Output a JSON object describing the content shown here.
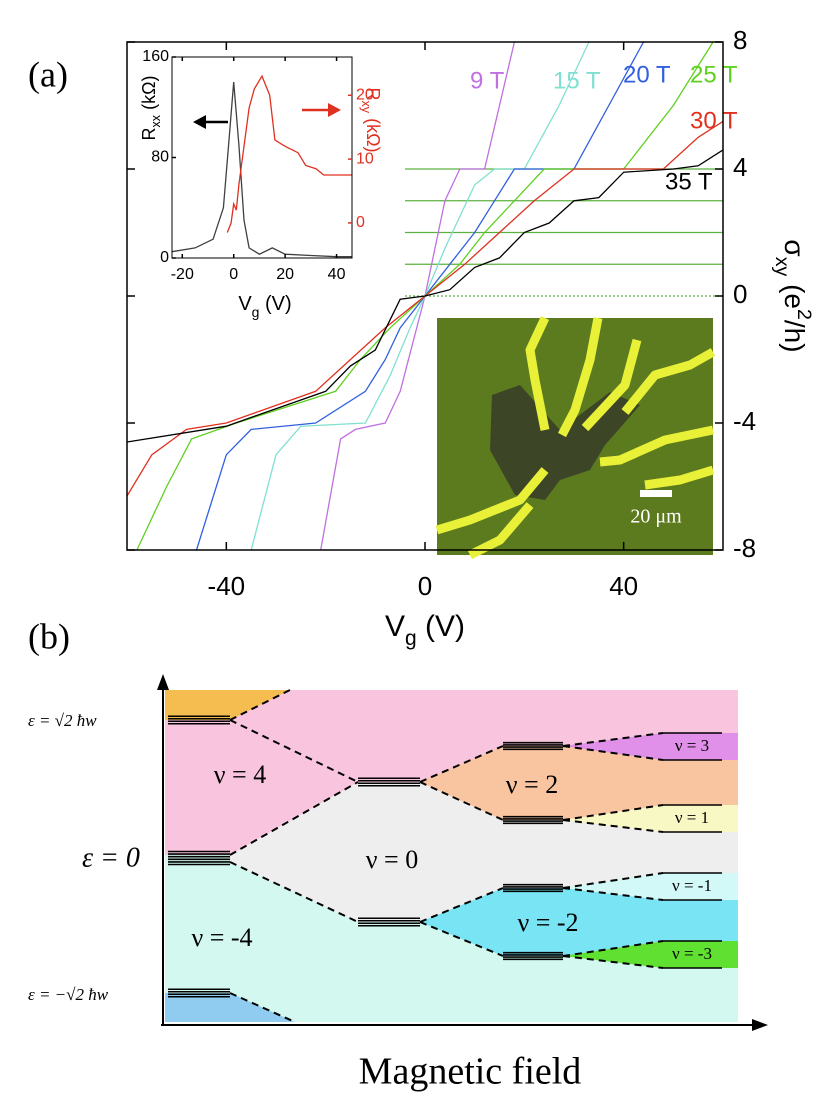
{
  "panel_labels": [
    "(a)",
    "(b)"
  ],
  "chart_data": [
    {
      "type": "line",
      "xlabel": [
        "V",
        "g",
        " (V)"
      ],
      "ylabel": [
        "σ",
        "xy",
        " (e",
        "2",
        "/h)"
      ],
      "xlim": [
        -60,
        60
      ],
      "xticks": [
        -40,
        0,
        40
      ],
      "ylim": [
        -8,
        8
      ],
      "yticks": [
        -8,
        -4,
        0,
        4,
        8
      ],
      "hlines": [
        0,
        1,
        2,
        3,
        4
      ],
      "hline_color": "#5cb040",
      "series": [
        {
          "name": "9 T",
          "color": "#c070e0",
          "x": [
            -21,
            -17,
            -14,
            -8,
            -5,
            0,
            4,
            7,
            12,
            15,
            18
          ],
          "values": [
            -8,
            -4.5,
            -4.2,
            -4,
            -3,
            0,
            3,
            4,
            4,
            6,
            8
          ]
        },
        {
          "name": "15 T",
          "color": "#80e0d0",
          "x": [
            -35,
            -30,
            -25,
            -12,
            -7,
            -3,
            0,
            4,
            7,
            10,
            14,
            20,
            27,
            33
          ],
          "values": [
            -8,
            -5,
            -4.1,
            -4,
            -2.5,
            -1,
            0,
            1.5,
            2.5,
            3.5,
            4,
            4,
            6,
            8
          ]
        },
        {
          "name": "20 T",
          "color": "#3060e0",
          "x": [
            -46,
            -40,
            -35,
            -22,
            -12,
            -8,
            -5,
            0,
            5,
            10,
            14,
            18,
            30,
            37,
            44
          ],
          "values": [
            -8,
            -5,
            -4.2,
            -4,
            -3,
            -2,
            -1,
            0,
            1,
            2,
            3,
            4,
            4,
            6,
            8
          ]
        },
        {
          "name": "25 T",
          "color": "#60d020",
          "x": [
            -58,
            -52,
            -47,
            -38,
            -18,
            -13,
            -7,
            0,
            7,
            12,
            18,
            24,
            40,
            50,
            58
          ],
          "values": [
            -8,
            -6,
            -4.5,
            -4,
            -3,
            -2,
            -1,
            0,
            1,
            2,
            3,
            4,
            4,
            6,
            8
          ]
        },
        {
          "name": "30 T",
          "color": "#e03020",
          "x": [
            -60,
            -55,
            -48,
            -40,
            -22,
            -15,
            -8,
            0,
            8,
            15,
            22,
            30,
            48,
            55,
            60
          ],
          "values": [
            -6.3,
            -5,
            -4.2,
            -4,
            -3,
            -2,
            -1,
            0,
            1,
            2,
            3,
            4,
            4,
            5,
            5.5
          ]
        },
        {
          "name": "35 T",
          "color": "#000000",
          "x": [
            -60,
            -40,
            -20,
            -15,
            -10,
            -5,
            0,
            5,
            10,
            15,
            20,
            25,
            30,
            35,
            40,
            50,
            55,
            60
          ],
          "values": [
            -4.6,
            -4.1,
            -3,
            -2.2,
            -1.7,
            -0.1,
            0,
            0.2,
            0.9,
            1.2,
            2,
            2.3,
            3,
            3.1,
            3.9,
            4,
            4.1,
            4.6
          ]
        }
      ],
      "scale_bar": "20 μm"
    },
    {
      "type": "line",
      "xlabel": [
        "V",
        "g",
        " (V)"
      ],
      "ylabel": [
        "R",
        "xx",
        " (kΩ)"
      ],
      "y2label": [
        "R",
        "xy",
        " (kΩ)"
      ],
      "xlim": [
        -24,
        46
      ],
      "xticks": [
        -20,
        0,
        20,
        40
      ],
      "ylim": [
        0,
        160
      ],
      "yticks": [
        0,
        80,
        160
      ],
      "y2lim": [
        -5.5,
        26
      ],
      "y2ticks": [
        0,
        10,
        20
      ],
      "y2color": "#e03020",
      "series": [
        {
          "color": "#404040",
          "x": [
            -24,
            -15,
            -8,
            -4,
            -2,
            0,
            2,
            4,
            6,
            10,
            15,
            20,
            30,
            40,
            46
          ],
          "values": [
            5,
            8,
            15,
            40,
            90,
            140,
            90,
            30,
            8,
            3,
            8,
            3,
            2,
            1,
            1
          ]
        },
        {
          "color": "#e03020",
          "axis": "y2",
          "x": [
            -2.5,
            -1,
            0,
            1,
            2,
            4,
            6,
            8,
            11,
            14,
            16,
            20,
            25,
            28,
            32,
            35,
            46
          ],
          "values": [
            -1.5,
            0,
            3,
            2,
            6,
            12,
            18,
            21,
            23,
            20,
            13,
            12,
            11,
            9,
            8.5,
            7.5,
            7.5
          ]
        }
      ]
    }
  ],
  "diagram": {
    "energy_labels": [
      "ε = √2 ħw",
      "ε = 0",
      "ε = −√2 ħw"
    ],
    "fillings": [
      "ν = 4",
      "ν = -4",
      "ν = 0",
      "ν = 2",
      "ν = -2",
      "ν = 3",
      "ν = 1",
      "ν = -1",
      "ν = -3"
    ],
    "x_label": "Magnetic field"
  }
}
